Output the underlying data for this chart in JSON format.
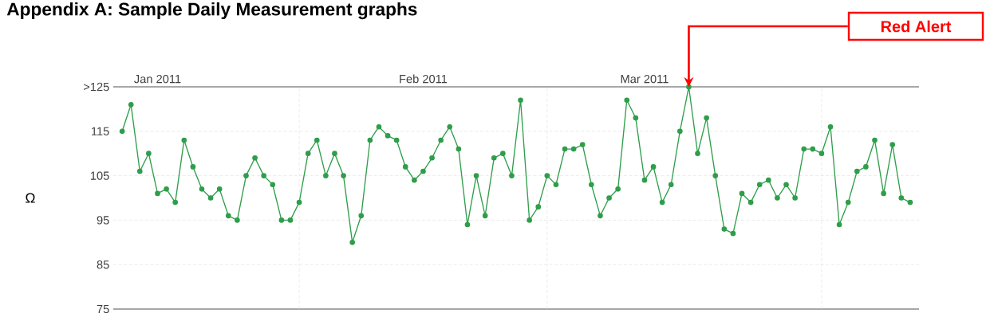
{
  "chart_data": {
    "type": "line",
    "title": "Appendix A: Sample Daily Measurement graphs",
    "ylabel": "Ω",
    "x": [
      "2011-01-12",
      "2011-01-13",
      "2011-01-14",
      "2011-01-15",
      "2011-01-16",
      "2011-01-17",
      "2011-01-18",
      "2011-01-19",
      "2011-01-20",
      "2011-01-21",
      "2011-01-22",
      "2011-01-23",
      "2011-01-24",
      "2011-01-25",
      "2011-01-26",
      "2011-01-27",
      "2011-01-28",
      "2011-01-29",
      "2011-01-30",
      "2011-01-31",
      "2011-02-01",
      "2011-02-02",
      "2011-02-03",
      "2011-02-04",
      "2011-02-05",
      "2011-02-06",
      "2011-02-07",
      "2011-02-08",
      "2011-02-09",
      "2011-02-10",
      "2011-02-11",
      "2011-02-12",
      "2011-02-13",
      "2011-02-14",
      "2011-02-15",
      "2011-02-16",
      "2011-02-17",
      "2011-02-18",
      "2011-02-19",
      "2011-02-20",
      "2011-02-21",
      "2011-02-22",
      "2011-02-23",
      "2011-02-24",
      "2011-02-25",
      "2011-02-26",
      "2011-02-27",
      "2011-02-28",
      "2011-03-01",
      "2011-03-02",
      "2011-03-03",
      "2011-03-04",
      "2011-03-05",
      "2011-03-06",
      "2011-03-07",
      "2011-03-08",
      "2011-03-09",
      "2011-03-10",
      "2011-03-11",
      "2011-03-12",
      "2011-03-13",
      "2011-03-14",
      "2011-03-15",
      "2011-03-16",
      "2011-03-17",
      "2011-03-18",
      "2011-03-19",
      "2011-03-20",
      "2011-03-21",
      "2011-03-22",
      "2011-03-23",
      "2011-03-24",
      "2011-03-25",
      "2011-03-26",
      "2011-03-27",
      "2011-03-28",
      "2011-03-29",
      "2011-03-30",
      "2011-03-31",
      "2011-04-01",
      "2011-04-02",
      "2011-04-03",
      "2011-04-04",
      "2011-04-05",
      "2011-04-06",
      "2011-04-07",
      "2011-04-08",
      "2011-04-09",
      "2011-04-10",
      "2011-04-11"
    ],
    "series": [
      {
        "color": "#2e9e4a",
        "values": [
          115,
          121,
          106,
          110,
          101,
          102,
          99,
          113,
          107,
          102,
          100,
          102,
          96,
          95,
          105,
          109,
          105,
          103,
          95,
          95,
          99,
          110,
          113,
          105,
          110,
          105,
          90,
          96,
          113,
          116,
          114,
          113,
          107,
          104,
          106,
          109,
          113,
          116,
          111,
          94,
          105,
          96,
          109,
          110,
          105,
          122,
          95,
          98,
          105,
          103,
          111,
          111,
          112,
          103,
          96,
          100,
          102,
          122,
          118,
          104,
          107,
          99,
          103,
          115,
          125,
          110,
          118,
          105,
          93,
          92,
          101,
          99,
          103,
          104,
          100,
          103,
          100,
          111,
          111,
          110,
          116,
          94,
          99,
          106,
          107,
          113,
          101,
          112,
          100,
          99
        ]
      }
    ],
    "xlim": [
      "2011-01-11",
      "2011-04-12"
    ],
    "xticks": [
      {
        "value": "2011-01-16",
        "label": "Jan 2011"
      },
      {
        "value": "2011-02-15",
        "label": "Feb 2011"
      },
      {
        "value": "2011-03-12",
        "label": "Mar 2011"
      },
      {
        "value": "2011-02-01",
        "label": null
      },
      {
        "value": "2011-03-01",
        "label": null
      },
      {
        "value": "2011-04-01",
        "label": null
      }
    ],
    "ylim": [
      75,
      125
    ],
    "yticks": [
      75,
      85,
      95,
      105,
      115,
      {
        "value": 125,
        "label": ">125"
      }
    ],
    "grid": true,
    "marker": "circle",
    "line_style": "solid",
    "annotations": [
      "Red Alert"
    ]
  }
}
